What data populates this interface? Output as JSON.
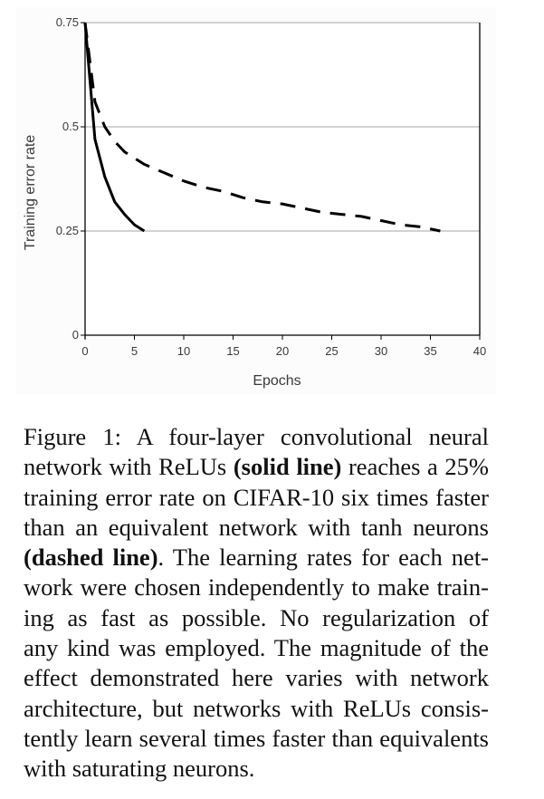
{
  "chart_data": {
    "type": "line",
    "title": "",
    "xlabel": "Epochs",
    "ylabel": "Training error rate",
    "xlim": [
      0,
      40
    ],
    "ylim": [
      0,
      0.75
    ],
    "x_ticks": [
      "0",
      "5",
      "10",
      "15",
      "20",
      "25",
      "30",
      "35",
      "40"
    ],
    "y_ticks": [
      "0",
      "0.25",
      "0.5",
      "0.75"
    ],
    "grid": "horizontal",
    "legend": "none",
    "series": [
      {
        "name": "ReLU network (solid line)",
        "style": "solid",
        "x": [
          0,
          1,
          2,
          3,
          4,
          5,
          6
        ],
        "y": [
          0.75,
          0.47,
          0.38,
          0.32,
          0.29,
          0.265,
          0.25
        ]
      },
      {
        "name": "tanh network (dashed line)",
        "style": "dashed",
        "x": [
          0,
          1,
          2,
          3,
          4,
          5,
          6,
          7,
          8,
          10,
          12,
          14,
          16,
          18,
          20,
          22,
          24,
          26,
          28,
          30,
          32,
          34,
          36
        ],
        "y": [
          0.75,
          0.56,
          0.5,
          0.465,
          0.44,
          0.425,
          0.41,
          0.4,
          0.39,
          0.37,
          0.355,
          0.345,
          0.33,
          0.32,
          0.315,
          0.305,
          0.295,
          0.29,
          0.285,
          0.275,
          0.265,
          0.26,
          0.25
        ]
      }
    ]
  },
  "caption": {
    "lines": [
      [
        {
          "t": "Figure 1:  A four-layer convolutional neural"
        }
      ],
      [
        {
          "t": "network with ReLUs "
        },
        {
          "t": "(solid line)",
          "b": true
        },
        {
          "t": " reaches a 25%"
        }
      ],
      [
        {
          "t": "training error rate on CIFAR-10 six times faster"
        }
      ],
      [
        {
          "t": "than an equivalent network with tanh neurons"
        }
      ],
      [
        {
          "t": "(dashed line)",
          "b": true
        },
        {
          "t": ".  The learning rates for each net-"
        }
      ],
      [
        {
          "t": "work were chosen independently to make train-"
        }
      ],
      [
        {
          "t": "ing as fast as possible.  No regularization of"
        }
      ],
      [
        {
          "t": "any kind was employed. The magnitude of the"
        }
      ],
      [
        {
          "t": "effect demonstrated here varies with network"
        }
      ],
      [
        {
          "t": "architecture, but networks with ReLUs consis-"
        }
      ],
      [
        {
          "t": "tently learn several times faster than equivalents"
        }
      ],
      [
        {
          "t": "with saturating neurons."
        }
      ]
    ]
  },
  "colors": {
    "line": "#000000",
    "grid": "#a6a6a6",
    "axis": "#000000",
    "text": "#3a3a3a",
    "caption_text": "#111111"
  }
}
